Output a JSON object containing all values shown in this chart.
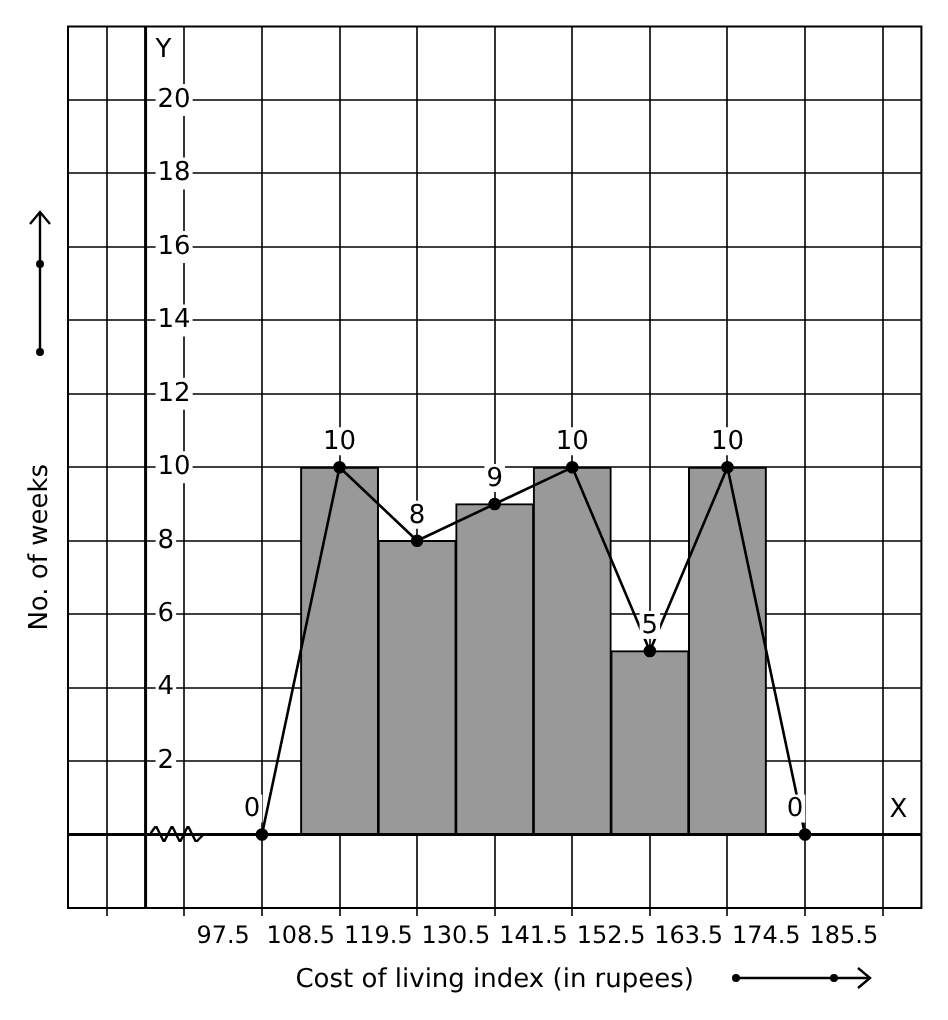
{
  "chart_data": {
    "type": "histogram",
    "xlabel": "Cost of living index (in rupees)",
    "ylabel": "No. of weeks",
    "bins": [
      108.5,
      119.5,
      130.5,
      141.5,
      152.5,
      163.5,
      174.5
    ],
    "values": [
      10,
      8,
      9,
      10,
      5,
      10
    ],
    "color": "#999999",
    "series": [
      {
        "type": "line",
        "x": [
          103,
          114,
          125,
          136,
          147,
          158,
          169,
          180
        ],
        "values": [
          0,
          10,
          8,
          9,
          10,
          5,
          10,
          0
        ],
        "value_labels": [
          "0",
          "10",
          "8",
          "9",
          "10",
          "5",
          "10",
          "0"
        ],
        "color": "#000000"
      }
    ],
    "xlim": [
      75.5,
      196.5
    ],
    "ylim": [
      -2,
      22
    ],
    "xticks": [
      {
        "value": 86.5,
        "label": null
      },
      97.5,
      108.5,
      119.5,
      130.5,
      141.5,
      152.5,
      163.5,
      174.5,
      185.5
    ],
    "yticks": [
      {
        "value": 0,
        "label": null
      },
      2,
      4,
      6,
      8,
      10,
      12,
      14,
      16,
      18,
      20
    ],
    "annotations": [
      "X",
      "Y"
    ],
    "grid": true,
    "marker": "circle",
    "line_style": "solid",
    "legend": false
  }
}
